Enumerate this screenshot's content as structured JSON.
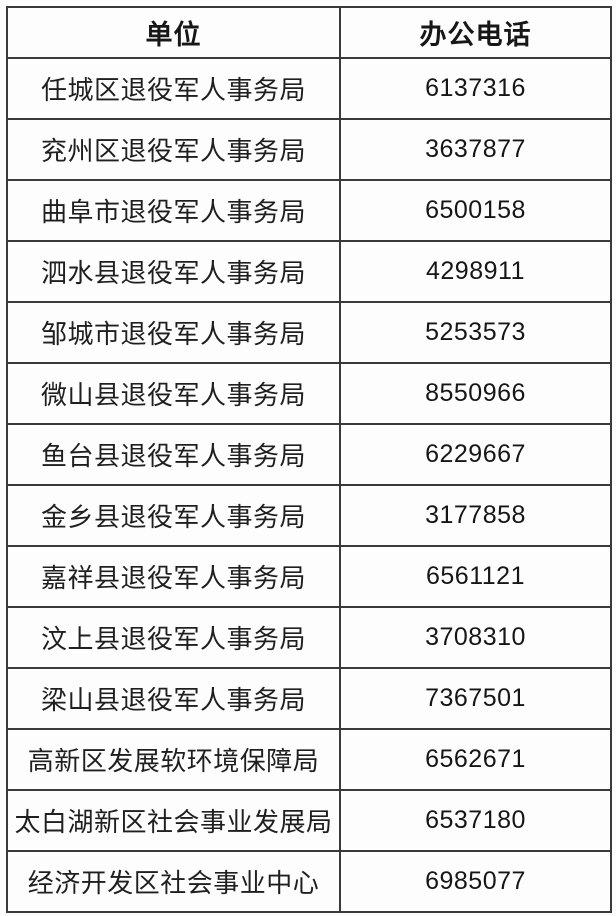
{
  "table": {
    "headers": {
      "unit": "单位",
      "phone": "办公电话"
    },
    "rows": [
      {
        "unit": "任城区退役军人事务局",
        "phone": "6137316"
      },
      {
        "unit": "兖州区退役军人事务局",
        "phone": "3637877"
      },
      {
        "unit": "曲阜市退役军人事务局",
        "phone": "6500158"
      },
      {
        "unit": "泗水县退役军人事务局",
        "phone": "4298911"
      },
      {
        "unit": "邹城市退役军人事务局",
        "phone": "5253573"
      },
      {
        "unit": "微山县退役军人事务局",
        "phone": "8550966"
      },
      {
        "unit": "鱼台县退役军人事务局",
        "phone": "6229667"
      },
      {
        "unit": "金乡县退役军人事务局",
        "phone": "3177858"
      },
      {
        "unit": "嘉祥县退役军人事务局",
        "phone": "6561121"
      },
      {
        "unit": "汶上县退役军人事务局",
        "phone": "3708310"
      },
      {
        "unit": "梁山县退役军人事务局",
        "phone": "7367501"
      },
      {
        "unit": "高新区发展软环境保障局",
        "phone": "6562671"
      },
      {
        "unit": "太白湖新区社会事业发展局",
        "phone": "6537180"
      },
      {
        "unit": "经济开发区社会事业中心",
        "phone": "6985077"
      }
    ]
  },
  "colors": {
    "border": "#3a3a3a",
    "text": "#1f1f1f",
    "background": "#fdfdfd"
  }
}
